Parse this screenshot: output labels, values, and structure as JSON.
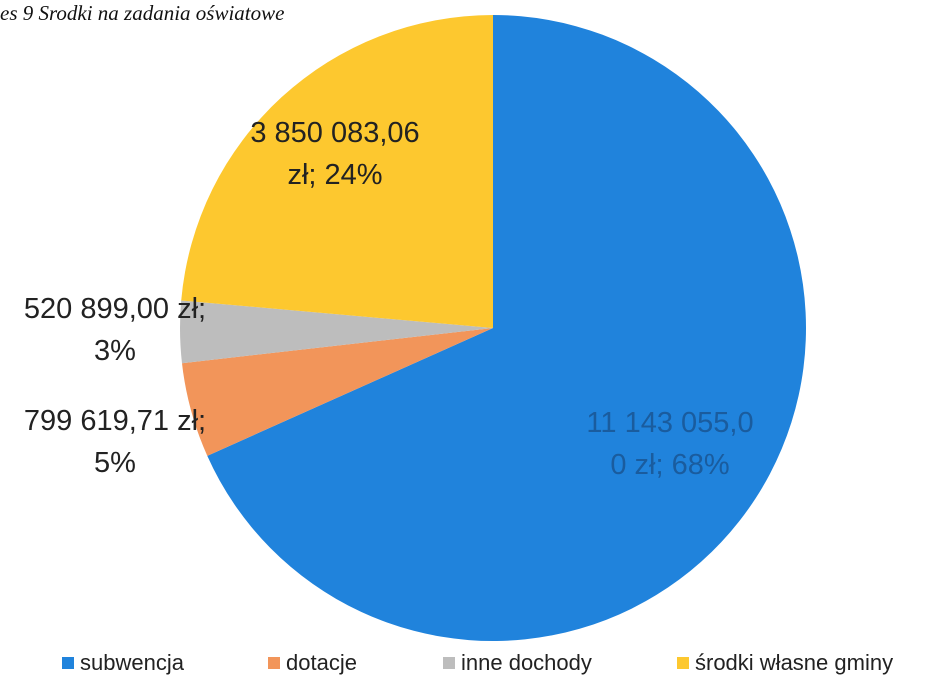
{
  "chart_data": {
    "type": "pie",
    "title": "es 9 Srodki na zadania oświatowe",
    "categories": [
      "subwencja",
      "dotacje",
      "inne dochody",
      "środki własne gminy"
    ],
    "values": [
      11143055.0,
      799619.71,
      520899.0,
      3850083.06
    ],
    "value_labels": [
      "11 143 055,0\n0 zł; 68%",
      "799 619,71 zł;\n5%",
      "520 899,00 zł;\n3%",
      "3 850 083,06\nzł; 24%"
    ],
    "colors": [
      "#2083dc",
      "#f2955a",
      "#bdbdbd",
      "#fdc82f"
    ],
    "legend": "bottom"
  }
}
